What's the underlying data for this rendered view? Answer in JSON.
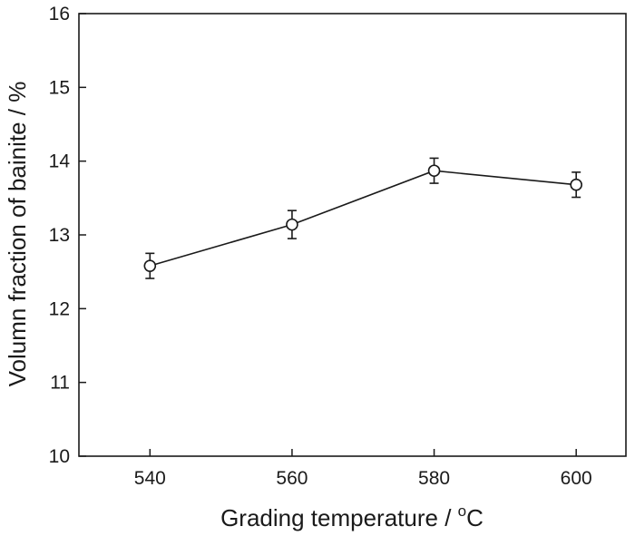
{
  "chart_data": {
    "type": "line",
    "title": "",
    "xlabel": {
      "prefix": "Grading temperature / ",
      "sup": "o",
      "suffix": "C"
    },
    "ylabel": "Volumn fraction of bainite  / %",
    "xlim": [
      530,
      607
    ],
    "ylim": [
      10,
      16
    ],
    "xticks": [
      540,
      560,
      580,
      600
    ],
    "xtick_labels": [
      "540",
      "560",
      "580",
      "600"
    ],
    "yticks": [
      10,
      11,
      12,
      13,
      14,
      15,
      16
    ],
    "ytick_labels": [
      "10",
      "11",
      "12",
      "13",
      "14",
      "15",
      "16"
    ],
    "grid": false,
    "legend": "none",
    "series": [
      {
        "x": [
          540,
          560,
          580,
          600
        ],
        "y": [
          12.58,
          13.14,
          13.87,
          13.68
        ],
        "error": [
          0.17,
          0.19,
          0.17,
          0.17
        ],
        "marker": "open-circle"
      }
    ]
  }
}
